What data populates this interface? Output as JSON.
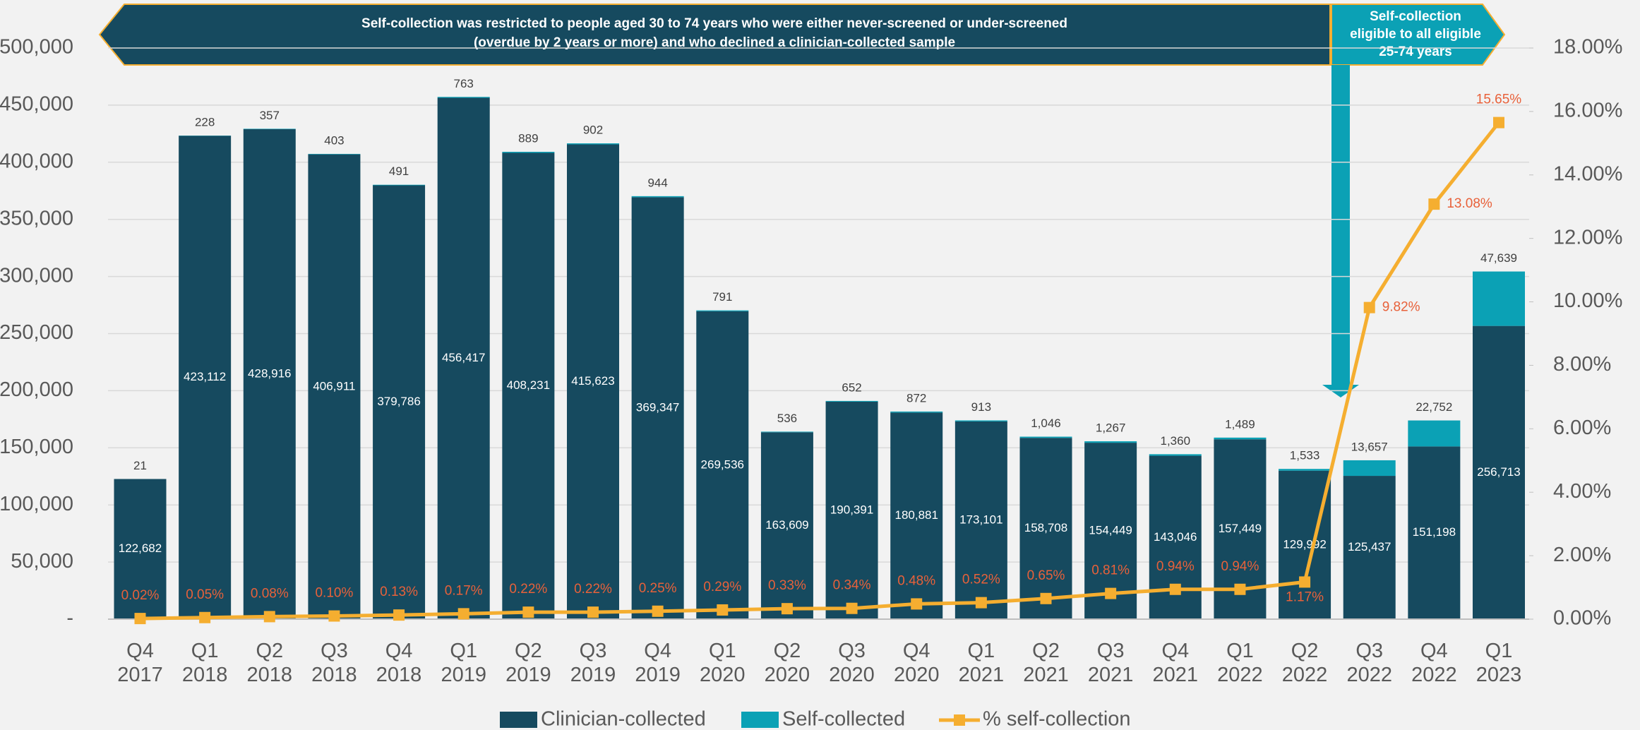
{
  "chart_data": {
    "type": "stacked-bar-line",
    "annotations": [
      "Self-collection was restricted to people aged 30 to 74 years who were either never-screened or under-screened",
      "(overdue by 2 years or more) and who declined a clinician-collected sample",
      "Self-collection",
      "eligible to all eligible",
      "25-74 years"
    ],
    "categories": [
      "Q4 2017",
      "Q1 2018",
      "Q2 2018",
      "Q3 2018",
      "Q4 2018",
      "Q1 2019",
      "Q2 2019",
      "Q3 2019",
      "Q4 2019",
      "Q1 2020",
      "Q2 2020",
      "Q3 2020",
      "Q4 2020",
      "Q1 2021",
      "Q2 2021",
      "Q3 2021",
      "Q4 2021",
      "Q1 2022",
      "Q2 2022",
      "Q3 2022",
      "Q4 2022",
      "Q1 2023"
    ],
    "series": [
      {
        "name": "Clinician-collected",
        "color": "#164a5f",
        "values": [
          122682,
          423112,
          428916,
          406911,
          379786,
          456417,
          408231,
          415623,
          369347,
          269536,
          163609,
          190391,
          180881,
          173101,
          158708,
          154449,
          143046,
          157449,
          129992,
          125437,
          151198,
          256713
        ],
        "value_labels": [
          "122,682",
          "423,112",
          "428,916",
          "406,911",
          "379,786",
          "456,417",
          "408,231",
          "415,623",
          "369,347",
          "269,536",
          "163,609",
          "190,391",
          "180,881",
          "173,101",
          "158,708",
          "154,449",
          "143,046",
          "157,449",
          "129,992",
          "125,437",
          "151,198",
          "256,713"
        ]
      },
      {
        "name": "Self-collected",
        "color": "#0ba1b5",
        "values": [
          21,
          228,
          357,
          403,
          491,
          763,
          889,
          902,
          944,
          791,
          536,
          652,
          872,
          913,
          1046,
          1267,
          1360,
          1489,
          1533,
          13657,
          22752,
          47639
        ],
        "value_labels": [
          "21",
          "228",
          "357",
          "403",
          "491",
          "763",
          "889",
          "902",
          "944",
          "791",
          "536",
          "652",
          "872",
          "913",
          "1,046",
          "1,267",
          "1,360",
          "1,489",
          "1,533",
          "13,657",
          "22,752",
          "47,639"
        ]
      },
      {
        "name": "% self-collection",
        "color": "#f5ae30",
        "axis": "y2",
        "label_color": "#e8613a",
        "values": [
          0.02,
          0.05,
          0.08,
          0.1,
          0.13,
          0.17,
          0.22,
          0.22,
          0.25,
          0.29,
          0.33,
          0.34,
          0.48,
          0.52,
          0.65,
          0.81,
          0.94,
          0.94,
          1.17,
          9.82,
          13.08,
          15.65
        ],
        "value_labels": [
          "0.02%",
          "0.05%",
          "0.08%",
          "0.10%",
          "0.13%",
          "0.17%",
          "0.22%",
          "0.22%",
          "0.25%",
          "0.29%",
          "0.33%",
          "0.34%",
          "0.48%",
          "0.52%",
          "0.65%",
          "0.81%",
          "0.94%",
          "0.94%",
          "1.17%",
          "9.82%",
          "13.08%",
          "15.65%"
        ]
      }
    ],
    "ylim": [
      0,
      500000
    ],
    "yticks": [
      {
        "value": 0,
        "label": "-"
      },
      {
        "value": 50000,
        "label": "50,000"
      },
      {
        "value": 100000,
        "label": "100,000"
      },
      {
        "value": 150000,
        "label": "150,000"
      },
      {
        "value": 200000,
        "label": "200,000"
      },
      {
        "value": 250000,
        "label": "250,000"
      },
      {
        "value": 300000,
        "label": "300,000"
      },
      {
        "value": 350000,
        "label": "350,000"
      },
      {
        "value": 400000,
        "label": "400,000"
      },
      {
        "value": 450000,
        "label": "450,000"
      },
      {
        "value": 500000,
        "label": "500,000"
      }
    ],
    "y2lim": [
      0,
      18
    ],
    "y2ticks": [
      {
        "value": 0,
        "label": "0.00%"
      },
      {
        "value": 2,
        "label": "2.00%"
      },
      {
        "value": 4,
        "label": "4.00%"
      },
      {
        "value": 6,
        "label": "6.00%"
      },
      {
        "value": 8,
        "label": "8.00%"
      },
      {
        "value": 10,
        "label": "10.00%"
      },
      {
        "value": 12,
        "label": "12.00%"
      },
      {
        "value": 14,
        "label": "14.00%"
      },
      {
        "value": 16,
        "label": "16.00%"
      },
      {
        "value": 18,
        "label": "18.00%"
      }
    ],
    "grid": true,
    "legend": "bottom"
  }
}
